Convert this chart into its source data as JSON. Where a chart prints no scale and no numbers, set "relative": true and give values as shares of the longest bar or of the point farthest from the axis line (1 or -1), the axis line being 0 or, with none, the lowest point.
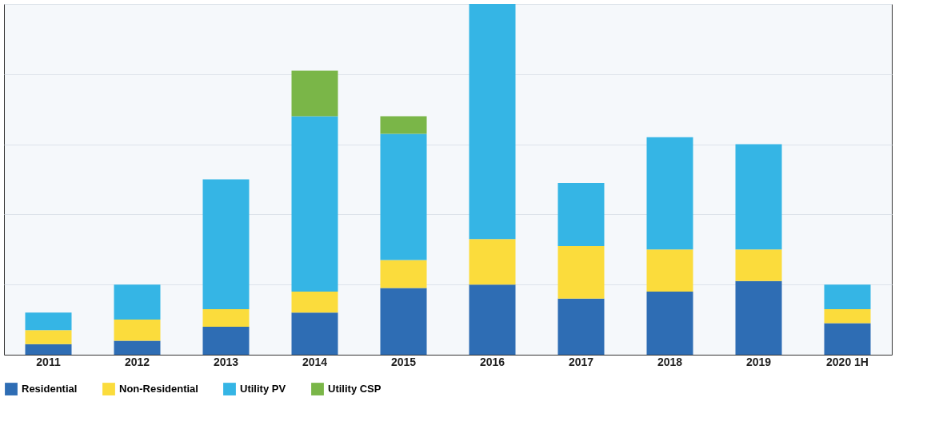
{
  "chart_data": {
    "type": "bar",
    "stacked": true,
    "relative": true,
    "grid": "y",
    "legend": "bottom",
    "categories": [
      "2011",
      "2012",
      "2013",
      "2014",
      "2015",
      "2016",
      "2017",
      "2018",
      "2019",
      "2020 1H"
    ],
    "series": [
      {
        "name": "Residential",
        "color": "#2e6db4",
        "values": [
          0.03,
          0.04,
          0.08,
          0.12,
          0.19,
          0.2,
          0.16,
          0.18,
          0.21,
          0.09
        ]
      },
      {
        "name": "Non-Residential",
        "color": "#fbdc3c",
        "values": [
          0.04,
          0.06,
          0.05,
          0.06,
          0.08,
          0.13,
          0.15,
          0.12,
          0.09,
          0.04
        ]
      },
      {
        "name": "Utility PV",
        "color": "#35b5e5",
        "values": [
          0.05,
          0.1,
          0.37,
          0.5,
          0.36,
          0.67,
          0.18,
          0.32,
          0.3,
          0.07
        ]
      },
      {
        "name": "Utility CSP",
        "color": "#7ab648",
        "values": [
          null,
          null,
          null,
          0.13,
          0.05,
          null,
          null,
          null,
          null,
          null
        ]
      }
    ]
  }
}
